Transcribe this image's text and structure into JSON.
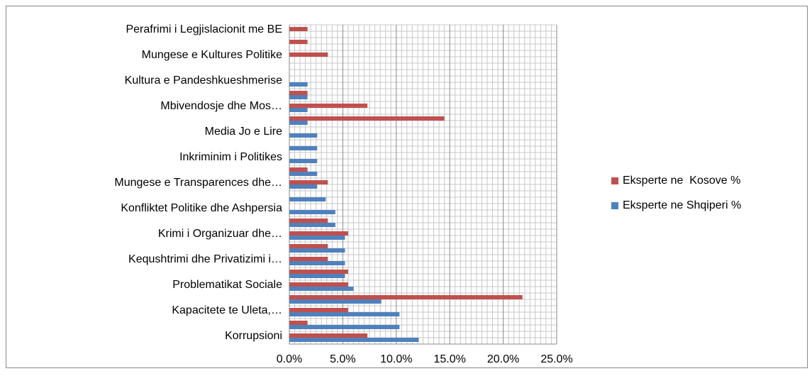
{
  "chart_data": {
    "type": "bar",
    "orientation": "horizontal",
    "categories": [
      "Perafrimi i Legjislacionit me BE",
      null,
      "Mungese e Kultures Politike",
      null,
      "Kultura e Pandeshkueshmerise",
      null,
      "Mbivendosje dhe Mos…",
      null,
      "Media Jo e Lire",
      null,
      "Inkriminim i Politikes",
      null,
      "Mungese e Transparences dhe…",
      null,
      "Konfliktet Politike dhe Ashpersia",
      null,
      "Krimi i Organizuar dhe…",
      null,
      "Kequshtrimi dhe Privatizimi i…",
      null,
      "Problematikat Sociale",
      null,
      "Kapacitete te Uleta,…",
      null,
      "Korrupsioni"
    ],
    "series": [
      {
        "name": "Eksperte ne  Kosove %",
        "color": "#c0504d",
        "values": [
          1.7,
          1.7,
          3.6,
          0,
          0,
          1.7,
          7.3,
          14.5,
          0,
          0,
          0,
          1.7,
          3.6,
          0,
          0,
          3.6,
          5.5,
          3.6,
          3.6,
          5.5,
          5.5,
          21.8,
          5.5,
          1.7,
          7.3
        ]
      },
      {
        "name": "Eksperte ne Shqiperi %",
        "color": "#4f81bd",
        "values": [
          0,
          0,
          0,
          0,
          1.7,
          1.7,
          1.7,
          1.7,
          2.6,
          2.6,
          2.6,
          2.6,
          2.6,
          3.4,
          4.3,
          4.3,
          5.2,
          5.2,
          5.2,
          5.2,
          6.0,
          8.6,
          10.3,
          10.3,
          12.1
        ]
      }
    ],
    "xlim": [
      0,
      25
    ],
    "xticks": [
      {
        "value": 0,
        "label": "0.0%"
      },
      {
        "value": 5,
        "label": "5.0%"
      },
      {
        "value": 10,
        "label": "10.0%"
      },
      {
        "value": 15,
        "label": "15.0%"
      },
      {
        "value": 20,
        "label": "20.0%"
      },
      {
        "value": 25,
        "label": "25.0%"
      }
    ],
    "grid": true,
    "legend": "right"
  }
}
